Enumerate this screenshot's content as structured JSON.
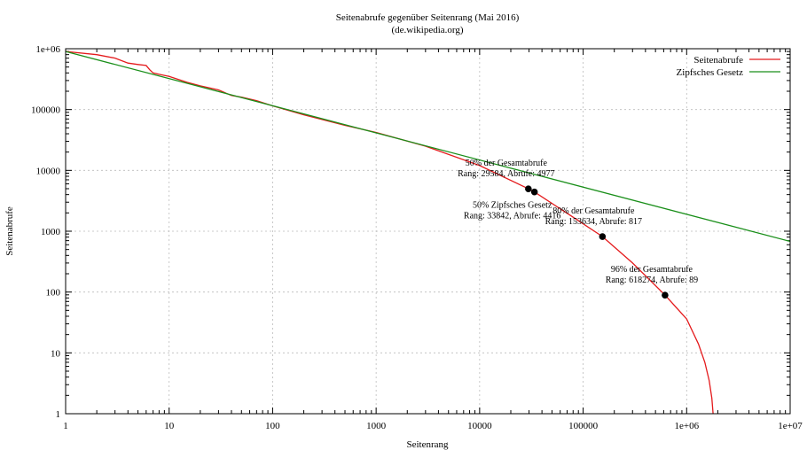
{
  "chart_data": {
    "type": "line",
    "title": "Seitenabrufe gegenüber Seitenrang (Mai 2016)",
    "subtitle": "(de.wikipedia.org)",
    "xlabel": "Seitenrang",
    "ylabel": "Seitenabrufe",
    "xscale": "log",
    "yscale": "log",
    "xlim": [
      1,
      10000000
    ],
    "ylim": [
      1,
      1000000
    ],
    "grid": true,
    "legend_position": "top-right",
    "x_tick_labels": [
      "1",
      "10",
      "100",
      "1000",
      "10000",
      "100000",
      "1e+06",
      "1e+07"
    ],
    "y_tick_labels": [
      "1",
      "10",
      "100",
      "1000",
      "10000",
      "100000",
      "1e+06"
    ],
    "series": [
      {
        "name": "Seitenabrufe",
        "color": "#e41a1c",
        "x": [
          1,
          2,
          3,
          4,
          5,
          6,
          6.5,
          7,
          8,
          10,
          15,
          20,
          30,
          40,
          50,
          70,
          100,
          200,
          500,
          1000,
          3000,
          10000,
          29584,
          33842,
          80000,
          153634,
          300000,
          618274,
          1000000,
          1300000,
          1500000,
          1650000,
          1750000,
          1800000
        ],
        "y": [
          900000,
          800000,
          700000,
          580000,
          550000,
          530000,
          450000,
          400000,
          380000,
          350000,
          280000,
          245000,
          210000,
          170000,
          160000,
          140000,
          115000,
          82000,
          55000,
          42000,
          25000,
          12000,
          4977,
          4416,
          1700,
          817,
          300,
          89,
          36,
          14,
          7,
          3.5,
          1.8,
          1
        ]
      },
      {
        "name": "Zipfsches Gesetz",
        "color": "#1a8f1a",
        "x": [
          1,
          10000000
        ],
        "y": [
          900000,
          680
        ]
      }
    ],
    "annotations": [
      {
        "line1": "50% der Gesamtabrufe",
        "line2": "Rang: 29584, Abrufe: 4977",
        "x": 29584,
        "y": 4977
      },
      {
        "line1": "50% Zipfsches Gesetz",
        "line2": "Rang: 33842, Abrufe: 4416",
        "x": 33842,
        "y": 4416
      },
      {
        "line1": "80% der Gesamtabrufe",
        "line2": "Rang: 153634, Abrufe: 817",
        "x": 153634,
        "y": 817
      },
      {
        "line1": "96% der Gesamtabrufe",
        "line2": "Rang: 618274, Abrufe: 89",
        "x": 618274,
        "y": 89
      }
    ]
  }
}
